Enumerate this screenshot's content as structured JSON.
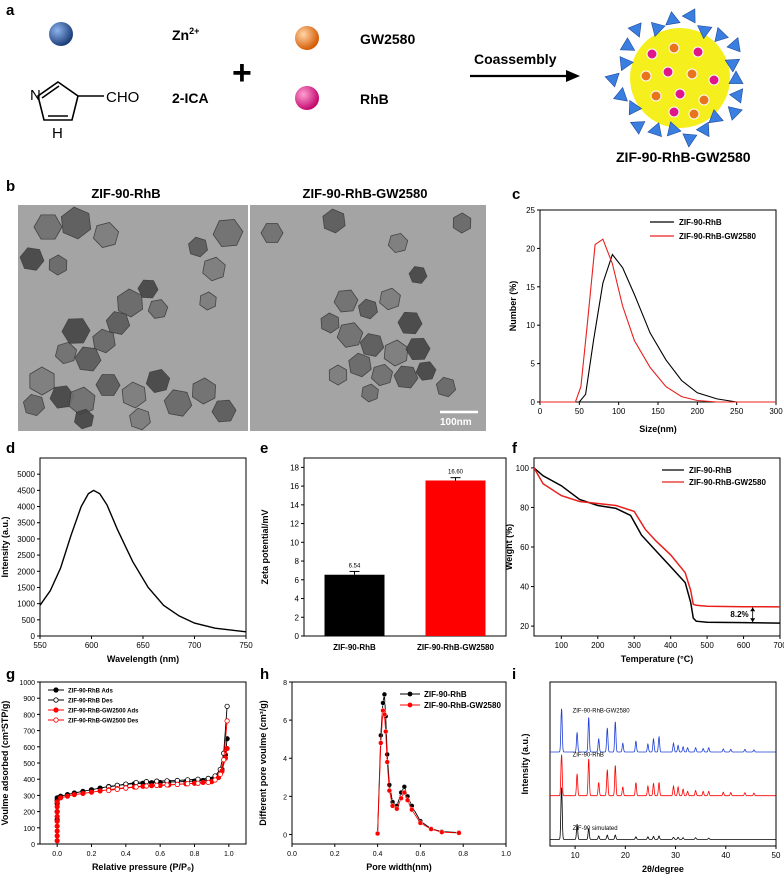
{
  "panel_letters": [
    "a",
    "b",
    "c",
    "d",
    "e",
    "f",
    "g",
    "h",
    "i"
  ],
  "scheme": {
    "zn_label": "Zn",
    "zn_sup": "2+",
    "cho_label": "CHO",
    "nh_label": "H",
    "n_label": "N",
    "ica_label": "2-ICA",
    "gw_label": "GW2580",
    "rhb_label": "RhB",
    "plus": "+",
    "arrow_label": "Coassembly",
    "product_label": "ZIF-90-RhB-GW2580",
    "colors": {
      "zn": "#2f5fa8",
      "gw": "#e8741c",
      "rhb": "#e0158a",
      "core": "#f5ef1e",
      "tetra": "#3a7fe0"
    }
  },
  "tem": {
    "left_title": "ZIF-90-RhB",
    "right_title": "ZIF-90-RhB-GW2580",
    "scale_bar": "100nm"
  },
  "chart_data": [
    {
      "id": "c",
      "type": "line",
      "xlabel": "Size(nm)",
      "ylabel": "Number (%)",
      "xlim": [
        0,
        300
      ],
      "ylim": [
        0,
        25
      ],
      "xticks": [
        0,
        50,
        100,
        150,
        200,
        250,
        300
      ],
      "yticks": [
        0,
        5,
        10,
        15,
        20,
        25
      ],
      "legend": "top-right",
      "series": [
        {
          "name": "ZIF-90-RhB",
          "color": "#000000",
          "x": [
            0,
            50,
            58,
            68,
            80,
            92,
            105,
            120,
            140,
            160,
            180,
            200,
            225,
            250,
            300
          ],
          "y": [
            0,
            0,
            1,
            8,
            15.5,
            19.2,
            17.5,
            14,
            9,
            5.5,
            2.8,
            1.2,
            0.4,
            0,
            0
          ]
        },
        {
          "name": "ZIF-90-RhB-GW2580",
          "color": "#e8201c",
          "x": [
            0,
            45,
            52,
            60,
            70,
            80,
            92,
            105,
            120,
            140,
            160,
            180,
            200,
            225,
            300
          ],
          "y": [
            0,
            0,
            2,
            10,
            20.5,
            21.2,
            18,
            12.5,
            8,
            4.5,
            2,
            0.7,
            0.2,
            0,
            0
          ]
        }
      ]
    },
    {
      "id": "d",
      "type": "line",
      "xlabel": "Wavelength (nm)",
      "ylabel": "Intensity (a.u.)",
      "xlim": [
        550,
        750
      ],
      "ylim": [
        0,
        5500
      ],
      "xticks": [
        550,
        600,
        650,
        700,
        750
      ],
      "yticks": [
        0,
        500,
        1000,
        1500,
        2000,
        2500,
        3000,
        3500,
        4000,
        4500,
        5000
      ],
      "series": [
        {
          "name": "",
          "color": "#000000",
          "x": [
            550,
            560,
            570,
            580,
            590,
            597,
            602,
            608,
            615,
            625,
            640,
            655,
            670,
            685,
            700,
            720,
            750
          ],
          "y": [
            950,
            1400,
            2100,
            3100,
            4000,
            4400,
            4500,
            4400,
            4050,
            3300,
            2300,
            1500,
            950,
            620,
            400,
            240,
            130
          ]
        }
      ]
    },
    {
      "id": "e",
      "type": "bar",
      "ylabel": "Zeta potential/mV",
      "ylim": [
        0,
        19
      ],
      "yticks": [
        0,
        2,
        4,
        6,
        8,
        10,
        12,
        14,
        16,
        18
      ],
      "categories": [
        "ZIF-90-RhB",
        "ZIF-90-RhB-GW2580"
      ],
      "values": [
        6.54,
        16.6
      ],
      "value_labels": [
        "6.54",
        "16.60"
      ],
      "errors": [
        0.35,
        0.3
      ],
      "colors": [
        "#000000",
        "#ff0000"
      ]
    },
    {
      "id": "f",
      "type": "line",
      "xlabel": "Temperature (°C)",
      "ylabel": "Weight (%)",
      "xlim": [
        25,
        700
      ],
      "ylim": [
        15,
        105
      ],
      "xticks": [
        100,
        200,
        300,
        400,
        500,
        600,
        700
      ],
      "yticks": [
        20,
        40,
        60,
        80,
        100
      ],
      "legend": "top-right",
      "annotation": "8.2%",
      "series": [
        {
          "name": "ZIF-90-RhB",
          "color": "#000000",
          "x": [
            25,
            50,
            100,
            150,
            200,
            250,
            290,
            320,
            360,
            400,
            440,
            455,
            462,
            470,
            500,
            600,
            700
          ],
          "y": [
            100,
            96,
            91,
            84,
            81,
            79.5,
            76,
            66,
            58,
            50,
            42,
            32,
            24,
            22.5,
            22,
            21.8,
            21.5
          ]
        },
        {
          "name": "ZIF-90-RhB-GW2580",
          "color": "#e8201c",
          "x": [
            25,
            50,
            100,
            150,
            200,
            250,
            300,
            330,
            360,
            400,
            440,
            455,
            462,
            470,
            500,
            600,
            700
          ],
          "y": [
            100,
            92,
            86,
            83,
            82,
            81,
            78,
            69,
            63,
            56,
            47,
            38,
            31,
            30.5,
            30,
            29.8,
            29.7
          ]
        }
      ]
    },
    {
      "id": "g",
      "type": "scatter",
      "xlabel": "Relative pressure (P/P₀)",
      "ylabel": "Voulme adsorbed (cm³STP/g)",
      "xlim": [
        -0.1,
        1.1
      ],
      "ylim": [
        0,
        1000
      ],
      "xticks": [
        0.0,
        0.2,
        0.4,
        0.6,
        0.8,
        1.0
      ],
      "yticks": [
        0,
        100,
        200,
        300,
        400,
        500,
        600,
        700,
        800,
        900,
        1000
      ],
      "legend": "top-left",
      "series": [
        {
          "name": "ZIF-90-RhB Ads",
          "color": "#000000",
          "filled": true,
          "x": [
            0,
            0,
            0,
            0,
            0,
            0.02,
            0.06,
            0.1,
            0.15,
            0.2,
            0.25,
            0.3,
            0.35,
            0.4,
            0.45,
            0.5,
            0.55,
            0.6,
            0.65,
            0.7,
            0.75,
            0.8,
            0.85,
            0.9,
            0.94,
            0.96,
            0.98,
            0.99
          ],
          "y": [
            150,
            200,
            250,
            270,
            285,
            295,
            305,
            315,
            325,
            335,
            345,
            355,
            362,
            368,
            372,
            375,
            378,
            380,
            382,
            384,
            386,
            388,
            392,
            398,
            420,
            460,
            550,
            650
          ]
        },
        {
          "name": "ZIF-90-RhB Des",
          "color": "#000000",
          "filled": false,
          "x": [
            0.99,
            0.97,
            0.95,
            0.92,
            0.88,
            0.82,
            0.76,
            0.7,
            0.64,
            0.58,
            0.52,
            0.46,
            0.4,
            0.35,
            0.3
          ],
          "y": [
            850,
            560,
            460,
            420,
            405,
            400,
            396,
            392,
            390,
            388,
            385,
            380,
            370,
            362,
            352
          ]
        },
        {
          "name": "ZIF-90-RhB-GW2500 Ads",
          "color": "#ff0000",
          "filled": true,
          "x": [
            0,
            0,
            0,
            0,
            0,
            0,
            0,
            0,
            0,
            0.02,
            0.06,
            0.1,
            0.15,
            0.2,
            0.25,
            0.3,
            0.35,
            0.4,
            0.45,
            0.5,
            0.55,
            0.6,
            0.65,
            0.7,
            0.75,
            0.8,
            0.85,
            0.9,
            0.94,
            0.96,
            0.98,
            0.99
          ],
          "y": [
            20,
            50,
            80,
            110,
            140,
            170,
            200,
            230,
            260,
            285,
            295,
            305,
            312,
            320,
            328,
            335,
            342,
            348,
            352,
            356,
            360,
            362,
            365,
            368,
            372,
            375,
            380,
            385,
            410,
            450,
            530,
            590
          ]
        },
        {
          "name": "ZIF-90-RhB-GW2500 Des",
          "color": "#ff0000",
          "filled": false,
          "x": [
            0.99,
            0.97,
            0.95,
            0.92,
            0.88,
            0.82,
            0.76,
            0.7,
            0.64,
            0.58,
            0.52,
            0.46,
            0.4,
            0.35,
            0.3
          ],
          "y": [
            760,
            520,
            430,
            395,
            380,
            375,
            372,
            368,
            365,
            362,
            358,
            352,
            345,
            338,
            330
          ]
        }
      ]
    },
    {
      "id": "h",
      "type": "line",
      "xlabel": "Pore width(nm)",
      "ylabel": "Different pore voulme (cm³/g)",
      "xlim": [
        0,
        1.0
      ],
      "ylim": [
        -0.5,
        8
      ],
      "xticks": [
        0.0,
        0.2,
        0.4,
        0.6,
        0.8,
        1.0
      ],
      "yticks": [
        0,
        2,
        4,
        6,
        8
      ],
      "legend": "top-right",
      "series": [
        {
          "name": "ZIF-90-RhB",
          "color": "#000000",
          "x": [
            0.4,
            0.415,
            0.425,
            0.432,
            0.438,
            0.445,
            0.455,
            0.47,
            0.49,
            0.51,
            0.525,
            0.54,
            0.56,
            0.6,
            0.65,
            0.7,
            0.78
          ],
          "y": [
            0.05,
            5.2,
            6.9,
            7.35,
            6.2,
            4.2,
            2.6,
            1.7,
            1.5,
            2.2,
            2.5,
            2.0,
            1.5,
            0.7,
            0.3,
            0.15,
            0.1
          ]
        },
        {
          "name": "ZIF-90-RhB-GW2580",
          "color": "#ff0000",
          "x": [
            0.4,
            0.415,
            0.425,
            0.432,
            0.438,
            0.445,
            0.455,
            0.47,
            0.49,
            0.51,
            0.525,
            0.54,
            0.56,
            0.6,
            0.65,
            0.7,
            0.78
          ],
          "y": [
            0.05,
            4.8,
            6.5,
            6.3,
            5.4,
            3.8,
            2.3,
            1.5,
            1.35,
            1.9,
            2.2,
            1.8,
            1.3,
            0.6,
            0.28,
            0.12,
            0.08
          ]
        }
      ]
    },
    {
      "id": "i",
      "type": "line",
      "xlabel": "2θ/degree",
      "ylabel": "Intensity (a.u.)",
      "xlim": [
        5,
        50
      ],
      "xticks": [
        10,
        20,
        30,
        40,
        50
      ],
      "series_labels": [
        "ZIF-90-RhB-GW2580",
        "ZIF-90-RhB",
        "ZIF-90 simulated"
      ],
      "series": [
        {
          "name": "ZIF-90-RhB-GW2580",
          "color": "#1f3fd6",
          "offset": 2.0,
          "peaks": [
            [
              7.3,
              1.0
            ],
            [
              10.4,
              0.45
            ],
            [
              12.7,
              0.8
            ],
            [
              14.7,
              0.3
            ],
            [
              16.4,
              0.55
            ],
            [
              18.0,
              0.7
            ],
            [
              19.5,
              0.2
            ],
            [
              22.1,
              0.25
            ],
            [
              24.5,
              0.18
            ],
            [
              25.6,
              0.3
            ],
            [
              26.7,
              0.35
            ],
            [
              29.6,
              0.2
            ],
            [
              30.5,
              0.15
            ],
            [
              31.5,
              0.12
            ],
            [
              32.4,
              0.1
            ],
            [
              34.0,
              0.1
            ],
            [
              35.5,
              0.08
            ],
            [
              36.6,
              0.1
            ],
            [
              39.5,
              0.07
            ],
            [
              41.0,
              0.06
            ],
            [
              43.8,
              0.06
            ],
            [
              45.6,
              0.05
            ]
          ]
        },
        {
          "name": "ZIF-90-RhB",
          "color": "#ff0000",
          "offset": 1.0,
          "peaks": [
            [
              7.3,
              0.95
            ],
            [
              10.4,
              0.5
            ],
            [
              12.7,
              0.85
            ],
            [
              14.7,
              0.3
            ],
            [
              16.4,
              0.6
            ],
            [
              18.0,
              0.7
            ],
            [
              19.5,
              0.2
            ],
            [
              22.1,
              0.3
            ],
            [
              24.5,
              0.22
            ],
            [
              25.6,
              0.28
            ],
            [
              26.7,
              0.3
            ],
            [
              29.6,
              0.22
            ],
            [
              30.5,
              0.2
            ],
            [
              31.5,
              0.15
            ],
            [
              32.4,
              0.1
            ],
            [
              34.0,
              0.12
            ],
            [
              35.5,
              0.1
            ],
            [
              36.6,
              0.1
            ],
            [
              39.5,
              0.08
            ],
            [
              41.0,
              0.07
            ],
            [
              43.8,
              0.07
            ],
            [
              45.6,
              0.06
            ]
          ]
        },
        {
          "name": "ZIF-90 simulated",
          "color": "#000000",
          "offset": 0.0,
          "peaks": [
            [
              7.3,
              1.2
            ],
            [
              10.4,
              0.35
            ],
            [
              12.7,
              0.25
            ],
            [
              14.7,
              0.08
            ],
            [
              16.4,
              0.1
            ],
            [
              18.0,
              0.1
            ],
            [
              22.1,
              0.06
            ],
            [
              24.5,
              0.06
            ],
            [
              25.6,
              0.07
            ],
            [
              26.7,
              0.08
            ],
            [
              29.6,
              0.05
            ],
            [
              30.5,
              0.05
            ],
            [
              31.5,
              0.04
            ],
            [
              34.0,
              0.04
            ],
            [
              36.6,
              0.03
            ]
          ]
        }
      ]
    }
  ]
}
